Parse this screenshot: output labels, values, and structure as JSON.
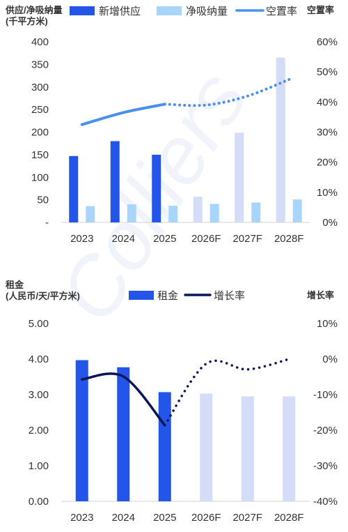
{
  "watermark": "Colliers",
  "chart_data": [
    {
      "type": "bar",
      "yaxis_title_lines": [
        "供应/净吸纳量",
        "(千平方米)"
      ],
      "y2axis_title": "空置率",
      "categories": [
        "2023",
        "2024",
        "2025",
        "2026F",
        "2027F",
        "2028F"
      ],
      "ylim": [
        0,
        400
      ],
      "yticks": [
        0,
        50,
        100,
        150,
        200,
        250,
        300,
        350,
        400
      ],
      "ytick_labels": [
        "-",
        "50",
        "100",
        "150",
        "200",
        "250",
        "300",
        "350",
        "400"
      ],
      "y2lim": [
        0,
        60
      ],
      "y2ticks": [
        0,
        10,
        20,
        30,
        40,
        50,
        60
      ],
      "y2tick_labels": [
        "0%",
        "10%",
        "20%",
        "30%",
        "40%",
        "50%",
        "60%"
      ],
      "grid": false,
      "legend_position": "top",
      "series": [
        {
          "name": "新增供应",
          "type": "bar",
          "axis": "left",
          "color": "#2255e8",
          "forecast_color": "#d5dcf7",
          "values": [
            147,
            180,
            150,
            1,
            1,
            365
          ]
        },
        {
          "name": "净吸纳量",
          "type": "bar",
          "axis": "left",
          "color": "#a8d5fb",
          "values": [
            36,
            40,
            37,
            41,
            44,
            51
          ]
        },
        {
          "name": "空置率",
          "type": "line",
          "axis": "right",
          "color": "#4a8ff0",
          "values": [
            32.5,
            36.5,
            39.3,
            39.0,
            42.0,
            47.5
          ]
        }
      ],
      "forecast_ghost_bars": {
        "categories": [
          "2026F",
          "2027F"
        ],
        "values": [
          57,
          199
        ],
        "color": "#d5dcf7"
      },
      "forecast_from_index": 2
    },
    {
      "type": "bar",
      "yaxis_title_lines": [
        "租金",
        "(人民币/天/平方米)"
      ],
      "y2axis_title": "增长率",
      "categories": [
        "2023",
        "2024",
        "2025",
        "2026F",
        "2027F",
        "2028F"
      ],
      "ylim": [
        0,
        5
      ],
      "yticks": [
        0,
        1,
        2,
        3,
        4,
        5
      ],
      "ytick_labels": [
        "0.00",
        "1.00",
        "2.00",
        "3.00",
        "4.00",
        "5.00"
      ],
      "y2lim": [
        -40,
        10
      ],
      "y2ticks": [
        -40,
        -30,
        -20,
        -10,
        0,
        10
      ],
      "y2tick_labels": [
        "-40%",
        "-30%",
        "-20%",
        "-10%",
        "0%",
        "10%"
      ],
      "grid": false,
      "legend_position": "top",
      "series": [
        {
          "name": "租金",
          "type": "bar",
          "axis": "left",
          "color": "#2255e8",
          "forecast_color": "#d5dcf7",
          "values": [
            3.97,
            3.77,
            3.07,
            3.03,
            2.95,
            2.95
          ]
        },
        {
          "name": "增长率",
          "type": "line",
          "axis": "right",
          "color": "#0b1559",
          "values": [
            -5.7,
            -4.9,
            -18.6,
            -1.3,
            -2.9,
            0
          ]
        }
      ],
      "forecast_from_index": 2
    }
  ]
}
